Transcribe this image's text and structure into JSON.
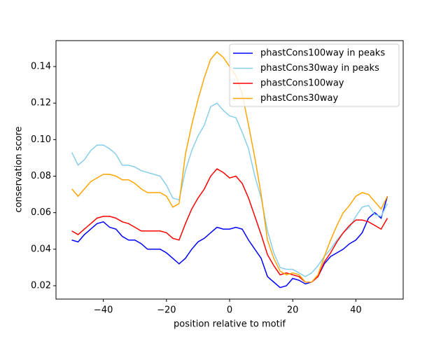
{
  "chart_data": {
    "type": "line",
    "xlabel": "position relative to motif",
    "ylabel": "conservation score",
    "x": [
      -50,
      -48,
      -46,
      -44,
      -42,
      -40,
      -38,
      -36,
      -34,
      -32,
      -30,
      -28,
      -26,
      -24,
      -22,
      -20,
      -18,
      -16,
      -14,
      -12,
      -10,
      -8,
      -6,
      -4,
      -2,
      0,
      2,
      4,
      6,
      8,
      10,
      12,
      14,
      16,
      18,
      20,
      22,
      24,
      26,
      28,
      30,
      32,
      34,
      36,
      38,
      40,
      42,
      44,
      46,
      48,
      50
    ],
    "series": [
      {
        "name": "phastCons100way in peaks",
        "color": "#0000ff",
        "values": [
          0.045,
          0.044,
          0.048,
          0.051,
          0.054,
          0.055,
          0.052,
          0.051,
          0.047,
          0.045,
          0.045,
          0.043,
          0.04,
          0.04,
          0.04,
          0.038,
          0.035,
          0.032,
          0.035,
          0.04,
          0.044,
          0.046,
          0.049,
          0.052,
          0.051,
          0.051,
          0.052,
          0.051,
          0.045,
          0.04,
          0.035,
          0.025,
          0.022,
          0.019,
          0.02,
          0.024,
          0.023,
          0.021,
          0.022,
          0.025,
          0.032,
          0.036,
          0.038,
          0.04,
          0.043,
          0.045,
          0.049,
          0.057,
          0.06,
          0.057,
          0.069
        ]
      },
      {
        "name": "phastCons30way in peaks",
        "color": "#87ceeb",
        "values": [
          0.093,
          0.086,
          0.089,
          0.094,
          0.097,
          0.097,
          0.095,
          0.092,
          0.086,
          0.086,
          0.085,
          0.083,
          0.082,
          0.081,
          0.08,
          0.075,
          0.068,
          0.067,
          0.083,
          0.094,
          0.102,
          0.108,
          0.118,
          0.12,
          0.116,
          0.113,
          0.112,
          0.104,
          0.095,
          0.08,
          0.068,
          0.05,
          0.038,
          0.03,
          0.029,
          0.029,
          0.027,
          0.025,
          0.027,
          0.031,
          0.036,
          0.04,
          0.045,
          0.049,
          0.052,
          0.058,
          0.063,
          0.064,
          0.059,
          0.058,
          0.065
        ]
      },
      {
        "name": "phastCons100way",
        "color": "#ff0000",
        "values": [
          0.05,
          0.048,
          0.051,
          0.054,
          0.057,
          0.058,
          0.058,
          0.057,
          0.055,
          0.054,
          0.052,
          0.05,
          0.05,
          0.05,
          0.05,
          0.049,
          0.046,
          0.045,
          0.054,
          0.062,
          0.068,
          0.073,
          0.08,
          0.084,
          0.082,
          0.079,
          0.08,
          0.076,
          0.068,
          0.058,
          0.048,
          0.037,
          0.031,
          0.026,
          0.027,
          0.026,
          0.025,
          0.022,
          0.022,
          0.025,
          0.033,
          0.038,
          0.044,
          0.049,
          0.053,
          0.056,
          0.056,
          0.055,
          0.053,
          0.051,
          0.057
        ]
      },
      {
        "name": "phastCons30way",
        "color": "#ffa500",
        "values": [
          0.073,
          0.069,
          0.073,
          0.077,
          0.079,
          0.081,
          0.081,
          0.08,
          0.078,
          0.078,
          0.076,
          0.073,
          0.071,
          0.071,
          0.071,
          0.069,
          0.063,
          0.065,
          0.092,
          0.108,
          0.122,
          0.134,
          0.144,
          0.148,
          0.145,
          0.14,
          0.135,
          0.125,
          0.108,
          0.09,
          0.07,
          0.045,
          0.035,
          0.028,
          0.026,
          0.027,
          0.026,
          0.022,
          0.022,
          0.026,
          0.036,
          0.045,
          0.053,
          0.06,
          0.064,
          0.069,
          0.071,
          0.07,
          0.066,
          0.062,
          0.069
        ]
      }
    ],
    "xlim": [
      -55,
      55
    ],
    "xticks": [
      {
        "value": -40,
        "label": "−40"
      },
      {
        "value": -20,
        "label": "−20"
      },
      0,
      20,
      40
    ],
    "ylim": [
      0.0127,
      0.1542
    ],
    "yticks": [
      0.02,
      0.04,
      0.06,
      0.08,
      {
        "value": 0.1,
        "label": "0.10"
      },
      0.12,
      0.14
    ],
    "legend": "upper right"
  }
}
